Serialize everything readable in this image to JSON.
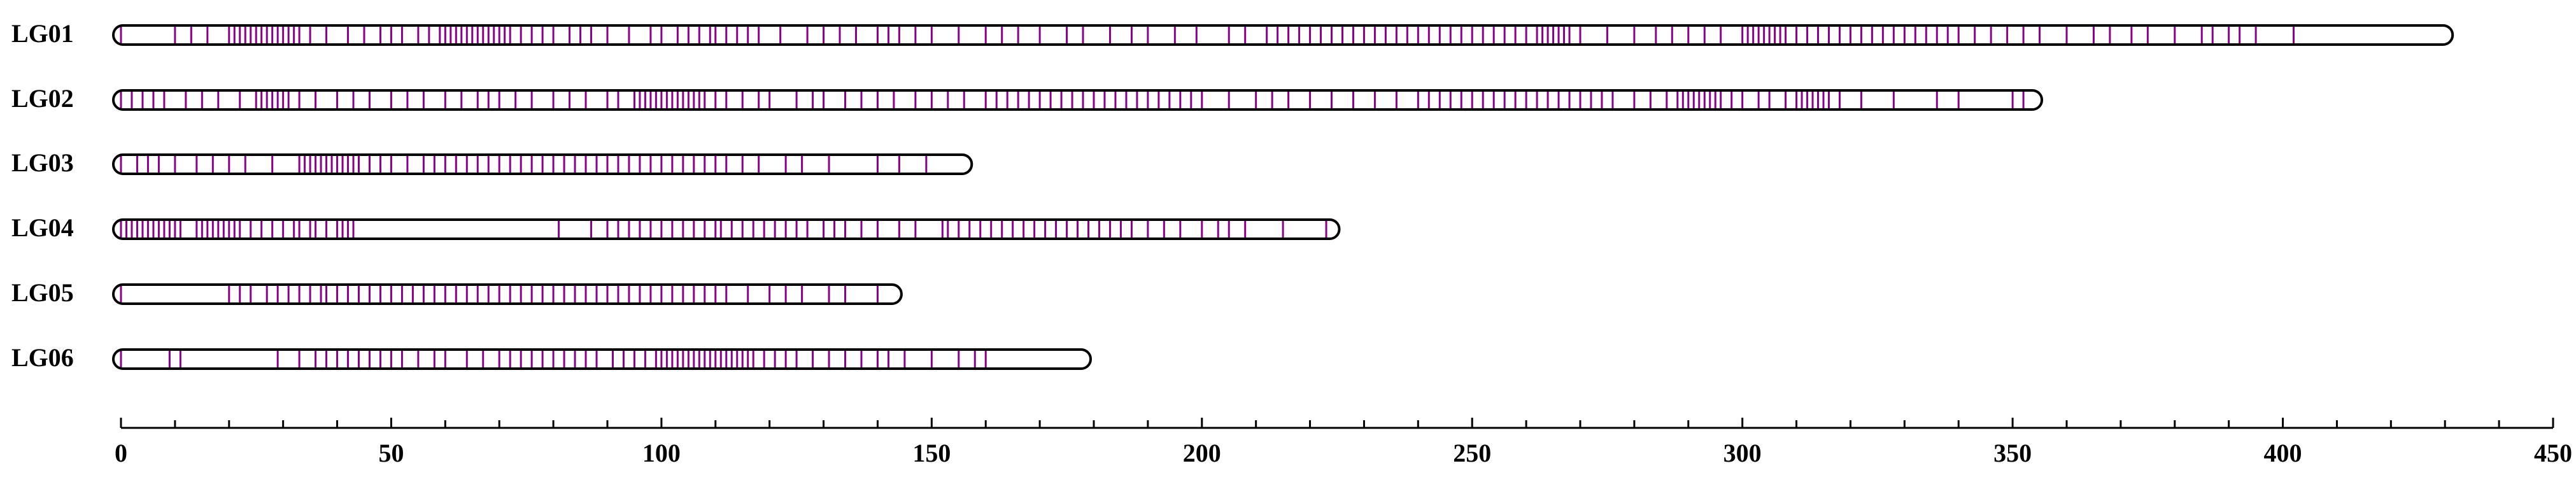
{
  "chart_data": {
    "type": "linkage_map",
    "xlim": [
      0,
      450
    ],
    "xticks": [
      0,
      50,
      100,
      150,
      200,
      250,
      300,
      350,
      400,
      450
    ],
    "xminorticks": [
      10,
      20,
      30,
      40,
      60,
      70,
      80,
      90,
      110,
      120,
      130,
      140,
      160,
      170,
      180,
      190,
      210,
      220,
      230,
      240,
      260,
      270,
      280,
      290,
      310,
      320,
      330,
      340,
      360,
      370,
      380,
      390,
      410,
      420,
      430,
      440
    ],
    "marker_color": "#8b008b",
    "outline_color": "#000000",
    "groups": [
      {
        "name": "LG01",
        "length": 430,
        "markers": [
          0,
          10,
          13,
          16,
          20,
          21,
          22,
          23,
          24,
          25,
          26,
          27,
          28,
          29,
          30,
          31,
          32,
          33,
          35,
          38,
          42,
          45,
          48,
          50,
          52,
          55,
          57,
          59,
          60,
          61,
          62,
          63,
          64,
          65,
          66,
          67,
          68,
          69,
          70,
          71,
          72,
          74,
          76,
          78,
          80,
          83,
          85,
          87,
          90,
          94,
          98,
          100,
          103,
          105,
          107,
          109,
          110,
          112,
          114,
          116,
          118,
          122,
          127,
          130,
          133,
          136,
          140,
          142,
          144,
          147,
          150,
          155,
          160,
          163,
          166,
          170,
          175,
          178,
          183,
          187,
          190,
          195,
          199,
          205,
          208,
          212,
          214,
          216,
          218,
          220,
          222,
          224,
          226,
          228,
          230,
          232,
          234,
          236,
          238,
          240,
          242,
          244,
          246,
          248,
          250,
          252,
          254,
          256,
          258,
          260,
          262,
          263,
          264,
          265,
          266,
          267,
          268,
          270,
          275,
          280,
          284,
          287,
          290,
          293,
          296,
          300,
          301,
          302,
          303,
          304,
          305,
          306,
          307,
          308,
          310,
          312,
          314,
          316,
          318,
          320,
          322,
          324,
          326,
          328,
          330,
          332,
          334,
          336,
          338,
          340,
          343,
          346,
          349,
          352,
          355,
          360,
          365,
          368,
          372,
          375,
          380,
          385,
          387,
          390,
          392,
          395,
          402
        ]
      },
      {
        "name": "LG02",
        "length": 354,
        "markers": [
          0,
          2,
          4,
          6,
          8,
          12,
          15,
          18,
          22,
          25,
          26,
          27,
          28,
          29,
          30,
          31,
          33,
          36,
          40,
          43,
          46,
          50,
          53,
          56,
          60,
          63,
          66,
          68,
          70,
          73,
          76,
          80,
          83,
          86,
          90,
          92,
          95,
          96,
          97,
          98,
          99,
          100,
          101,
          102,
          103,
          104,
          105,
          106,
          107,
          108,
          110,
          112,
          115,
          118,
          120,
          125,
          128,
          130,
          134,
          137,
          140,
          143,
          147,
          150,
          153,
          156,
          160,
          162,
          164,
          166,
          168,
          170,
          172,
          174,
          176,
          178,
          180,
          182,
          184,
          186,
          188,
          190,
          192,
          194,
          196,
          198,
          200,
          205,
          210,
          213,
          216,
          220,
          224,
          228,
          232,
          236,
          240,
          242,
          244,
          246,
          248,
          250,
          252,
          254,
          256,
          258,
          260,
          262,
          264,
          266,
          268,
          270,
          272,
          274,
          276,
          280,
          283,
          286,
          288,
          289,
          290,
          291,
          292,
          293,
          294,
          295,
          296,
          298,
          300,
          303,
          305,
          308,
          310,
          311,
          312,
          313,
          314,
          315,
          316,
          318,
          322,
          328,
          336,
          340,
          350,
          352
        ]
      },
      {
        "name": "LG03",
        "length": 156,
        "markers": [
          0,
          3,
          5,
          7,
          10,
          14,
          17,
          20,
          23,
          28,
          33,
          34,
          35,
          36,
          37,
          38,
          39,
          40,
          41,
          42,
          43,
          44,
          46,
          48,
          50,
          53,
          56,
          58,
          60,
          62,
          64,
          66,
          68,
          70,
          72,
          74,
          76,
          78,
          80,
          82,
          84,
          86,
          88,
          90,
          92,
          94,
          96,
          98,
          100,
          102,
          104,
          106,
          108,
          110,
          112,
          115,
          118,
          123,
          126,
          131,
          140,
          144,
          149
        ]
      },
      {
        "name": "LG04",
        "length": 224,
        "markers": [
          0,
          1,
          2,
          3,
          4,
          5,
          6,
          7,
          8,
          9,
          10,
          11,
          14,
          15,
          16,
          17,
          18,
          19,
          20,
          21,
          22,
          24,
          26,
          28,
          30,
          32,
          33,
          35,
          36,
          38,
          40,
          41,
          42,
          43,
          81,
          87,
          90,
          92,
          94,
          96,
          98,
          100,
          102,
          104,
          106,
          108,
          110,
          111,
          113,
          115,
          117,
          119,
          121,
          123,
          125,
          127,
          130,
          132,
          134,
          137,
          140,
          144,
          147,
          152,
          153,
          155,
          157,
          159,
          161,
          163,
          165,
          167,
          169,
          171,
          173,
          175,
          177,
          179,
          181,
          183,
          185,
          187,
          190,
          193,
          196,
          200,
          203,
          205,
          208,
          215,
          223
        ]
      },
      {
        "name": "LG05",
        "length": 143,
        "markers": [
          0,
          20,
          22,
          24,
          27,
          29,
          31,
          33,
          35,
          37,
          38,
          40,
          42,
          44,
          46,
          48,
          50,
          52,
          54,
          56,
          58,
          60,
          62,
          64,
          66,
          68,
          70,
          72,
          74,
          76,
          78,
          80,
          82,
          84,
          86,
          88,
          90,
          92,
          94,
          96,
          98,
          100,
          102,
          104,
          106,
          108,
          110,
          112,
          116,
          120,
          123,
          126,
          131,
          134,
          140
        ]
      },
      {
        "name": "LG06",
        "length": 178,
        "markers": [
          0,
          9,
          11,
          29,
          33,
          36,
          38,
          40,
          42,
          44,
          46,
          48,
          50,
          52,
          55,
          58,
          60,
          64,
          67,
          70,
          72,
          74,
          76,
          78,
          80,
          82,
          84,
          86,
          88,
          91,
          93,
          95,
          97,
          99,
          100,
          101,
          102,
          103,
          104,
          105,
          106,
          107,
          108,
          109,
          110,
          111,
          112,
          113,
          114,
          115,
          116,
          117,
          119,
          121,
          123,
          125,
          128,
          131,
          134,
          137,
          140,
          142,
          145,
          150,
          155,
          158,
          160
        ]
      }
    ]
  }
}
